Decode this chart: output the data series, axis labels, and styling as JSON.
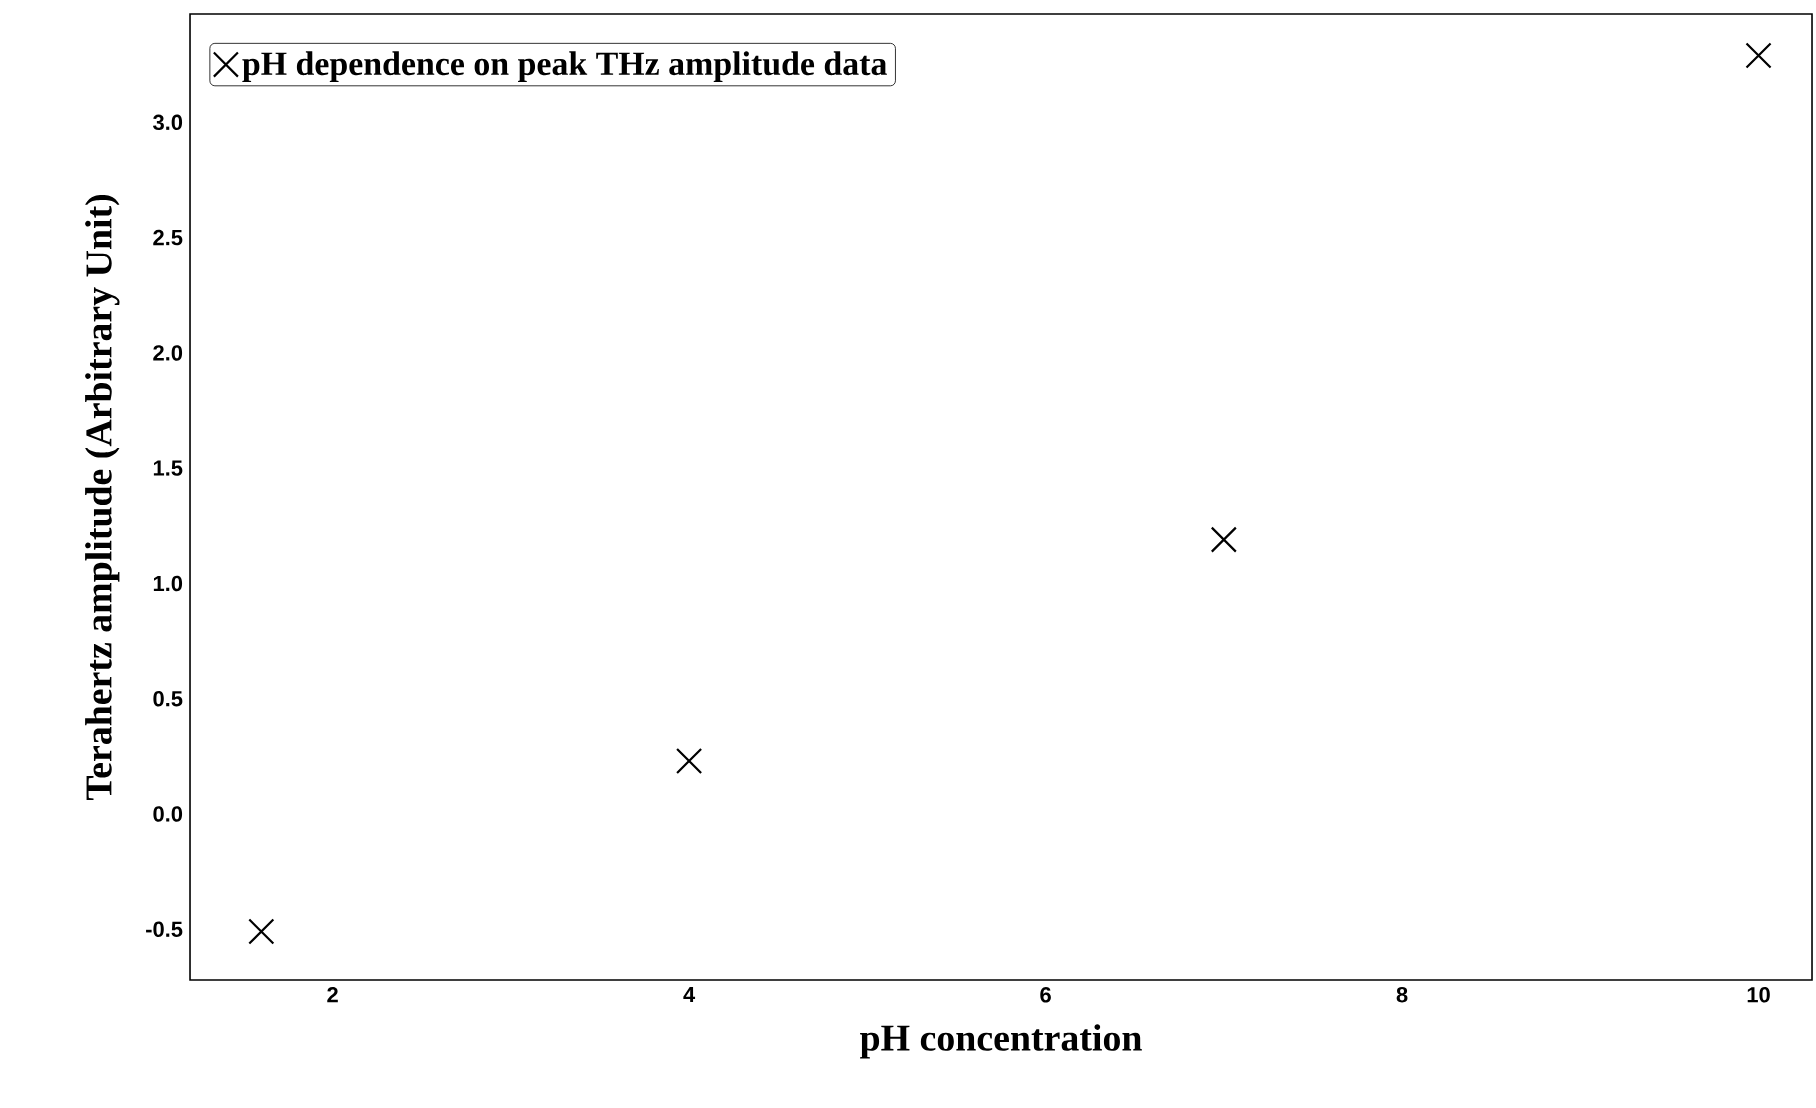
{
  "chart_data": {
    "type": "scatter",
    "xlabel": "pH concentration",
    "ylabel": "Terahertz amplitude (Arbitrary Unit)",
    "series": [
      {
        "name": "pH dependence on peak THz amplitude data",
        "color": "#000000",
        "marker": "cross",
        "x": [
          1.6,
          4.0,
          7.0,
          10.0
        ],
        "values": [
          -0.51,
          0.23,
          1.19,
          3.29
        ]
      }
    ],
    "xlim": [
      1.2,
      10.3
    ],
    "ylim": [
      -0.72,
      3.47
    ],
    "xticks": [
      2,
      4,
      6,
      8,
      10
    ],
    "yticks": [
      {
        "value": -0.5,
        "label": "-0.5"
      },
      {
        "value": 0,
        "label": "0.0"
      },
      {
        "value": 0.5,
        "label": "0.5"
      },
      {
        "value": 1,
        "label": "1.0"
      },
      {
        "value": 1.5,
        "label": "1.5"
      },
      {
        "value": 2,
        "label": "2.0"
      },
      {
        "value": 2.5,
        "label": "2.5"
      },
      {
        "value": 3,
        "label": "3.0"
      }
    ],
    "grid": false,
    "legend": "top left"
  }
}
